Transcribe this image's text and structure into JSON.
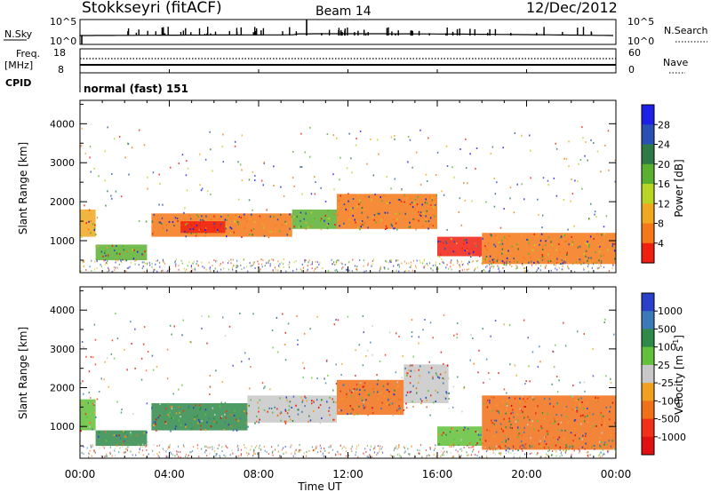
{
  "header": {
    "station": "Stokkseyri (fitACF)",
    "beam": "Beam 14",
    "date": "12/Dec/2012"
  },
  "panels": {
    "nsky": {
      "label": "N.Sky",
      "tick_top": "10^5",
      "tick_bottom": "10^0",
      "right_label": "N.Search",
      "right_tick_top": "10^5",
      "right_tick_bottom": "10^0"
    },
    "freq": {
      "label_line1": "Freq.",
      "label_line2": "[MHz]",
      "tick_top": "18",
      "tick_bottom": "8",
      "right_label": "Nave",
      "right_tick_top": "60",
      "right_tick_bottom": "0"
    },
    "cpid": {
      "label": "CPID",
      "text": "normal (fast) 151"
    }
  },
  "chart_data": [
    {
      "type": "heatmap",
      "name": "power",
      "ylabel": "Slant Range [km]",
      "yticks": [
        "1000",
        "2000",
        "3000",
        "4000"
      ],
      "ylim": [
        180,
        4600
      ],
      "colorbar": {
        "label": "Power [dB]",
        "ticks": [
          "4",
          "8",
          "12",
          "16",
          "20",
          "24",
          "28"
        ],
        "colors": [
          "#1e20e8",
          "#2a50b4",
          "#2e7a46",
          "#5cb030",
          "#b8d424",
          "#f0a820",
          "#f47818",
          "#f02010"
        ]
      },
      "bands": [
        {
          "h0": 0.0,
          "h1": 0.7,
          "r0": 1100,
          "r1": 1800,
          "color": "#f0a820"
        },
        {
          "h0": 0.7,
          "h1": 3.0,
          "r0": 500,
          "r1": 900,
          "color": "#5cb030"
        },
        {
          "h0": 3.2,
          "h1": 9.5,
          "r0": 1100,
          "r1": 1700,
          "color": "#f47818"
        },
        {
          "h0": 4.5,
          "h1": 6.5,
          "r0": 1200,
          "r1": 1500,
          "color": "#f02010"
        },
        {
          "h0": 9.5,
          "h1": 11.5,
          "r0": 1300,
          "r1": 1800,
          "color": "#5cb030"
        },
        {
          "h0": 11.5,
          "h1": 16.0,
          "r0": 1300,
          "r1": 2200,
          "color": "#f47818"
        },
        {
          "h0": 16.0,
          "h1": 18.0,
          "r0": 600,
          "r1": 1100,
          "color": "#f02010"
        },
        {
          "h0": 18.0,
          "h1": 24.0,
          "r0": 400,
          "r1": 1200,
          "color": "#f47818"
        }
      ]
    },
    {
      "type": "heatmap",
      "name": "velocity",
      "ylabel": "Slant Range [km]",
      "yticks": [
        "1000",
        "2000",
        "3000",
        "4000"
      ],
      "ylim": [
        180,
        4600
      ],
      "xlabel": "Time UT",
      "xticks": [
        "00:00",
        "04:00",
        "08:00",
        "12:00",
        "16:00",
        "20:00",
        "00:00"
      ],
      "xlim": [
        0,
        24
      ],
      "colorbar": {
        "label": "Velocity [m s-1]",
        "ticks": [
          "1000",
          "500",
          "100",
          "25",
          "-25",
          "-100",
          "-500",
          "-1000"
        ],
        "colors": [
          "#2a40c8",
          "#3a7ab8",
          "#2f8a4a",
          "#62c03a",
          "#c8c8c8",
          "#f0a020",
          "#f07018",
          "#f03018",
          "#e01010"
        ]
      },
      "bands": [
        {
          "h0": 0.0,
          "h1": 0.7,
          "r0": 900,
          "r1": 1700,
          "color": "#62c03a"
        },
        {
          "h0": 0.7,
          "h1": 3.0,
          "r0": 500,
          "r1": 900,
          "color": "#2f8a4a"
        },
        {
          "h0": 3.2,
          "h1": 7.5,
          "r0": 900,
          "r1": 1600,
          "color": "#2f8a4a"
        },
        {
          "h0": 7.5,
          "h1": 11.5,
          "r0": 1100,
          "r1": 1800,
          "color": "#c8c8c8"
        },
        {
          "h0": 11.5,
          "h1": 14.5,
          "r0": 1300,
          "r1": 2200,
          "color": "#f07018"
        },
        {
          "h0": 14.5,
          "h1": 16.5,
          "r0": 1600,
          "r1": 2600,
          "color": "#c8c8c8"
        },
        {
          "h0": 16.0,
          "h1": 18.0,
          "r0": 500,
          "r1": 1000,
          "color": "#62c03a"
        },
        {
          "h0": 18.0,
          "h1": 24.0,
          "r0": 400,
          "r1": 1800,
          "color": "#f07018"
        }
      ]
    }
  ]
}
